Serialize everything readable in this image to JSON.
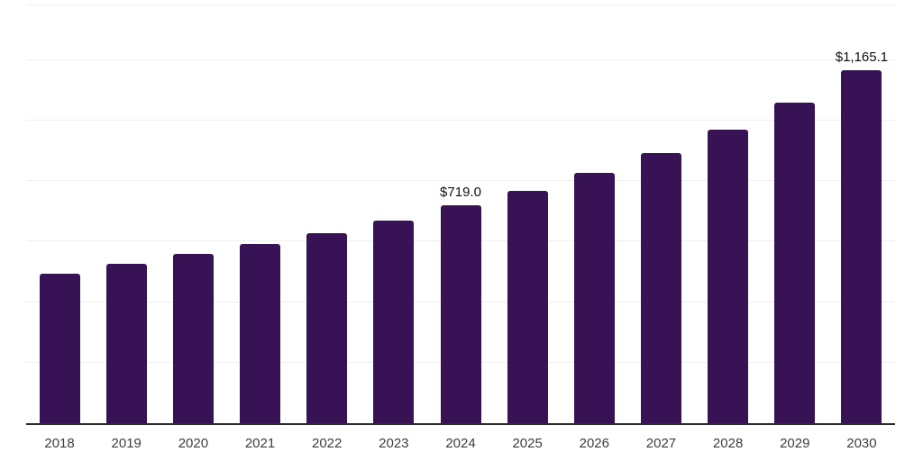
{
  "chart_data": {
    "type": "bar",
    "title": "",
    "xlabel": "",
    "ylabel": "",
    "categories": [
      "2018",
      "2019",
      "2020",
      "2021",
      "2022",
      "2023",
      "2024",
      "2025",
      "2026",
      "2027",
      "2028",
      "2029",
      "2030"
    ],
    "values": [
      495,
      525,
      558,
      592,
      628,
      668,
      719.0,
      768,
      827,
      893,
      970,
      1060,
      1165.1
    ],
    "value_labels": [
      null,
      null,
      null,
      null,
      null,
      null,
      "$719.0",
      null,
      null,
      null,
      null,
      null,
      "$1,165.1"
    ],
    "ylim": [
      0,
      1383
    ],
    "gridline_step": 200,
    "grid": true,
    "legend": "none",
    "colors": {
      "bar": "#371254",
      "gridline": "#efefef",
      "axis_line": "#2b2b2b",
      "tick_label": "#3d3d3d",
      "value_label": "#111111",
      "background": "#ffffff"
    }
  }
}
